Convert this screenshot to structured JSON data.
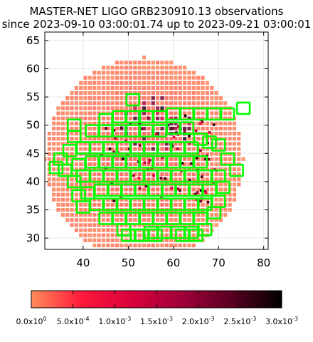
{
  "title": {
    "line1": "MASTER-NET LIGO GRB230910.13 observations",
    "line2": "since 2023-09-10 03:00:01.74 up to 2023-09-21 03:00:01"
  },
  "chart_data": {
    "type": "heatmap",
    "description_of_marks": "probability sky map (RA vs Dec) overlaid with observed fields (green squares)",
    "xlim": [
      31.5,
      81
    ],
    "ylim": [
      28,
      66.5
    ],
    "x_ticks": [
      40,
      50,
      60,
      70,
      80
    ],
    "y_ticks": [
      30,
      35,
      40,
      45,
      50,
      55,
      60,
      65
    ],
    "skymap": {
      "center": [
        53.5,
        44
      ],
      "ra_radius": 22,
      "dec_radius": 18,
      "step": 1.0
    },
    "colorbar": {
      "min": 0,
      "max": 0.003,
      "tick_values": [
        0,
        0.0005,
        0.001,
        0.0015,
        0.002,
        0.0025,
        0.003
      ],
      "tick_labels": [
        {
          "m": "0.0x10",
          "e": "0"
        },
        {
          "m": "5.0x10",
          "e": "-4"
        },
        {
          "m": "1.0x10",
          "e": "-3"
        },
        {
          "m": "1.5x10",
          "e": "-3"
        },
        {
          "m": "2.0x10",
          "e": "-3"
        },
        {
          "m": "2.5x10",
          "e": "-3"
        },
        {
          "m": "3.0x10",
          "e": "-3"
        }
      ],
      "colors": [
        "#ff8c5a",
        "#ff1a3c",
        "#d8003c",
        "#a0003a",
        "#5a0022",
        "#000000"
      ]
    },
    "fields": [
      [
        51,
        54.5
      ],
      [
        75.5,
        53
      ],
      [
        72,
        52
      ],
      [
        69,
        52
      ],
      [
        66,
        52
      ],
      [
        63,
        52
      ],
      [
        60,
        52
      ],
      [
        57,
        51.5
      ],
      [
        54,
        51.5
      ],
      [
        51,
        51.5
      ],
      [
        48,
        51.5
      ],
      [
        45,
        51
      ],
      [
        38,
        50
      ],
      [
        63,
        49.5
      ],
      [
        60,
        49.5
      ],
      [
        57,
        49
      ],
      [
        54,
        49
      ],
      [
        51,
        49
      ],
      [
        48,
        49
      ],
      [
        45,
        49
      ],
      [
        42,
        49
      ],
      [
        38,
        48
      ],
      [
        66,
        47.5
      ],
      [
        68,
        47
      ],
      [
        70,
        46.5
      ],
      [
        64,
        46
      ],
      [
        61,
        46
      ],
      [
        58,
        46
      ],
      [
        55,
        46
      ],
      [
        52,
        46
      ],
      [
        49,
        46
      ],
      [
        46,
        46
      ],
      [
        43,
        46
      ],
      [
        40,
        46
      ],
      [
        37,
        45.5
      ],
      [
        35,
        44
      ],
      [
        72,
        44
      ],
      [
        66,
        43.5
      ],
      [
        63,
        43.5
      ],
      [
        60,
        43.5
      ],
      [
        57,
        43.5
      ],
      [
        54,
        43.5
      ],
      [
        51,
        43.5
      ],
      [
        48,
        43.5
      ],
      [
        45,
        43.5
      ],
      [
        42,
        43.5
      ],
      [
        39,
        43
      ],
      [
        36,
        42
      ],
      [
        34,
        42.5
      ],
      [
        74,
        42
      ],
      [
        70,
        41
      ],
      [
        67,
        41
      ],
      [
        64,
        41
      ],
      [
        61,
        41
      ],
      [
        58,
        41
      ],
      [
        55,
        41
      ],
      [
        52,
        41
      ],
      [
        49,
        41
      ],
      [
        46,
        41
      ],
      [
        43,
        41
      ],
      [
        40,
        41
      ],
      [
        38,
        40
      ],
      [
        71,
        39
      ],
      [
        68,
        38.5
      ],
      [
        65,
        38.5
      ],
      [
        62,
        38.5
      ],
      [
        59,
        38.5
      ],
      [
        56,
        38.5
      ],
      [
        53,
        38.5
      ],
      [
        50,
        38.5
      ],
      [
        47,
        38.5
      ],
      [
        44,
        38.5
      ],
      [
        41,
        38
      ],
      [
        39,
        37.5
      ],
      [
        70,
        36.5
      ],
      [
        67,
        36
      ],
      [
        64,
        36
      ],
      [
        61,
        36
      ],
      [
        58,
        36
      ],
      [
        55,
        36
      ],
      [
        52,
        36
      ],
      [
        49,
        36
      ],
      [
        46,
        36
      ],
      [
        43,
        36
      ],
      [
        40,
        35.5
      ],
      [
        69,
        34.5
      ],
      [
        66,
        33.5
      ],
      [
        63,
        33.5
      ],
      [
        60,
        33.5
      ],
      [
        57,
        33.5
      ],
      [
        54,
        33.5
      ],
      [
        51,
        33.5
      ],
      [
        48,
        33.5
      ],
      [
        45,
        33.5
      ],
      [
        67,
        31.5
      ],
      [
        64,
        31
      ],
      [
        61,
        31
      ],
      [
        58,
        31
      ],
      [
        55,
        31
      ],
      [
        52,
        30.5
      ],
      [
        49,
        31.5
      ],
      [
        62,
        30.5
      ],
      [
        56,
        30.5
      ],
      [
        53,
        30.5
      ],
      [
        65,
        30.5
      ],
      [
        50,
        30.5
      ]
    ]
  }
}
